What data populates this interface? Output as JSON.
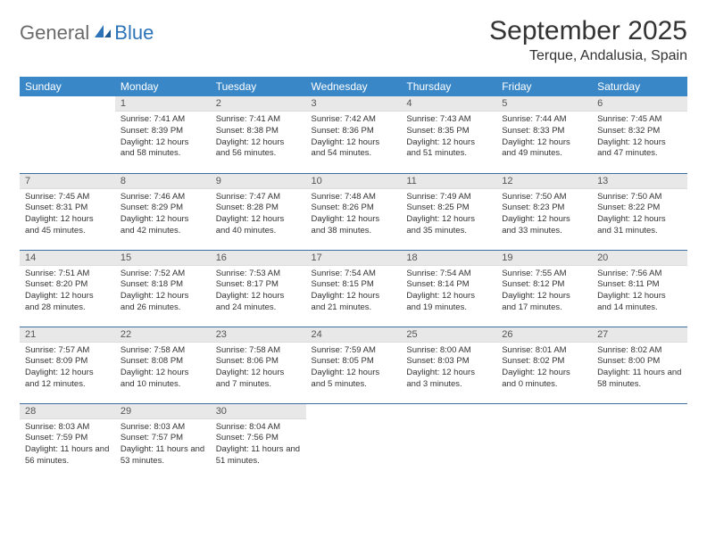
{
  "logo": {
    "general": "General",
    "blue": "Blue"
  },
  "title": "September 2025",
  "location": "Terque, Andalusia, Spain",
  "colors": {
    "header_bg": "#3a87c8",
    "header_fg": "#ffffff",
    "daynum_bg": "#e8e8e8",
    "row_border": "#3a6ea5",
    "logo_gray": "#6a6a6a",
    "logo_blue": "#2d73b8",
    "page_bg": "#ffffff",
    "text": "#333333"
  },
  "typography": {
    "title_fontsize": 30,
    "location_fontsize": 16,
    "weekday_fontsize": 12,
    "daynum_fontsize": 11,
    "body_fontsize": 9.5
  },
  "weekdays": [
    "Sunday",
    "Monday",
    "Tuesday",
    "Wednesday",
    "Thursday",
    "Friday",
    "Saturday"
  ],
  "weeks": [
    [
      null,
      {
        "n": "1",
        "sr": "7:41 AM",
        "ss": "8:39 PM",
        "dl": "12 hours and 58 minutes."
      },
      {
        "n": "2",
        "sr": "7:41 AM",
        "ss": "8:38 PM",
        "dl": "12 hours and 56 minutes."
      },
      {
        "n": "3",
        "sr": "7:42 AM",
        "ss": "8:36 PM",
        "dl": "12 hours and 54 minutes."
      },
      {
        "n": "4",
        "sr": "7:43 AM",
        "ss": "8:35 PM",
        "dl": "12 hours and 51 minutes."
      },
      {
        "n": "5",
        "sr": "7:44 AM",
        "ss": "8:33 PM",
        "dl": "12 hours and 49 minutes."
      },
      {
        "n": "6",
        "sr": "7:45 AM",
        "ss": "8:32 PM",
        "dl": "12 hours and 47 minutes."
      }
    ],
    [
      {
        "n": "7",
        "sr": "7:45 AM",
        "ss": "8:31 PM",
        "dl": "12 hours and 45 minutes."
      },
      {
        "n": "8",
        "sr": "7:46 AM",
        "ss": "8:29 PM",
        "dl": "12 hours and 42 minutes."
      },
      {
        "n": "9",
        "sr": "7:47 AM",
        "ss": "8:28 PM",
        "dl": "12 hours and 40 minutes."
      },
      {
        "n": "10",
        "sr": "7:48 AM",
        "ss": "8:26 PM",
        "dl": "12 hours and 38 minutes."
      },
      {
        "n": "11",
        "sr": "7:49 AM",
        "ss": "8:25 PM",
        "dl": "12 hours and 35 minutes."
      },
      {
        "n": "12",
        "sr": "7:50 AM",
        "ss": "8:23 PM",
        "dl": "12 hours and 33 minutes."
      },
      {
        "n": "13",
        "sr": "7:50 AM",
        "ss": "8:22 PM",
        "dl": "12 hours and 31 minutes."
      }
    ],
    [
      {
        "n": "14",
        "sr": "7:51 AM",
        "ss": "8:20 PM",
        "dl": "12 hours and 28 minutes."
      },
      {
        "n": "15",
        "sr": "7:52 AM",
        "ss": "8:18 PM",
        "dl": "12 hours and 26 minutes."
      },
      {
        "n": "16",
        "sr": "7:53 AM",
        "ss": "8:17 PM",
        "dl": "12 hours and 24 minutes."
      },
      {
        "n": "17",
        "sr": "7:54 AM",
        "ss": "8:15 PM",
        "dl": "12 hours and 21 minutes."
      },
      {
        "n": "18",
        "sr": "7:54 AM",
        "ss": "8:14 PM",
        "dl": "12 hours and 19 minutes."
      },
      {
        "n": "19",
        "sr": "7:55 AM",
        "ss": "8:12 PM",
        "dl": "12 hours and 17 minutes."
      },
      {
        "n": "20",
        "sr": "7:56 AM",
        "ss": "8:11 PM",
        "dl": "12 hours and 14 minutes."
      }
    ],
    [
      {
        "n": "21",
        "sr": "7:57 AM",
        "ss": "8:09 PM",
        "dl": "12 hours and 12 minutes."
      },
      {
        "n": "22",
        "sr": "7:58 AM",
        "ss": "8:08 PM",
        "dl": "12 hours and 10 minutes."
      },
      {
        "n": "23",
        "sr": "7:58 AM",
        "ss": "8:06 PM",
        "dl": "12 hours and 7 minutes."
      },
      {
        "n": "24",
        "sr": "7:59 AM",
        "ss": "8:05 PM",
        "dl": "12 hours and 5 minutes."
      },
      {
        "n": "25",
        "sr": "8:00 AM",
        "ss": "8:03 PM",
        "dl": "12 hours and 3 minutes."
      },
      {
        "n": "26",
        "sr": "8:01 AM",
        "ss": "8:02 PM",
        "dl": "12 hours and 0 minutes."
      },
      {
        "n": "27",
        "sr": "8:02 AM",
        "ss": "8:00 PM",
        "dl": "11 hours and 58 minutes."
      }
    ],
    [
      {
        "n": "28",
        "sr": "8:03 AM",
        "ss": "7:59 PM",
        "dl": "11 hours and 56 minutes."
      },
      {
        "n": "29",
        "sr": "8:03 AM",
        "ss": "7:57 PM",
        "dl": "11 hours and 53 minutes."
      },
      {
        "n": "30",
        "sr": "8:04 AM",
        "ss": "7:56 PM",
        "dl": "11 hours and 51 minutes."
      },
      null,
      null,
      null,
      null
    ]
  ],
  "labels": {
    "sunrise": "Sunrise:",
    "sunset": "Sunset:",
    "daylight": "Daylight:"
  }
}
